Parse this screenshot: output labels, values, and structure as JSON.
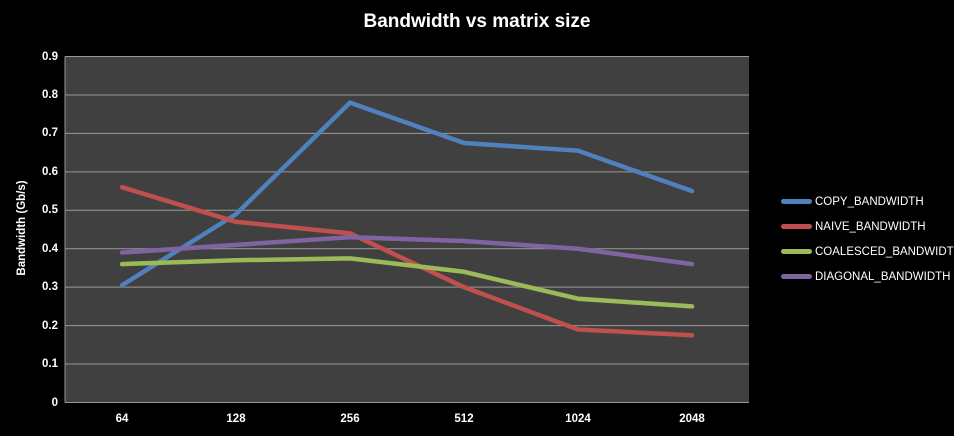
{
  "chart_data": {
    "type": "line",
    "title": "Bandwidth vs matrix size",
    "xlabel": "",
    "ylabel": "Bandwidth  (Gb/s)",
    "categories": [
      "64",
      "128",
      "256",
      "512",
      "1024",
      "2048"
    ],
    "series": [
      {
        "name": "COPY_BANDWIDTH",
        "color": "#4F81BD",
        "values": [
          0.305,
          0.49,
          0.78,
          0.675,
          0.655,
          0.55
        ]
      },
      {
        "name": "NAIVE_BANDWIDTH",
        "color": "#C0504D",
        "values": [
          0.56,
          0.47,
          0.44,
          0.3,
          0.19,
          0.175
        ]
      },
      {
        "name": "COALESCED_BANDWIDTH",
        "color": "#9BBB59",
        "values": [
          0.36,
          0.37,
          0.375,
          0.34,
          0.27,
          0.25
        ]
      },
      {
        "name": "DIAGONAL_BANDWIDTH",
        "color": "#8064A2",
        "values": [
          0.39,
          0.41,
          0.43,
          0.42,
          0.4,
          0.36
        ]
      }
    ],
    "ylim": [
      0,
      0.9
    ],
    "yticks": [
      "0",
      "0.1",
      "0.2",
      "0.3",
      "0.4",
      "0.5",
      "0.6",
      "0.7",
      "0.8",
      "0.9"
    ],
    "grid": true,
    "legend_position": "right",
    "colors": {
      "background": "#000000",
      "plot_background": "#404040",
      "gridline": "#999999",
      "text": "#FFFFFF"
    }
  }
}
